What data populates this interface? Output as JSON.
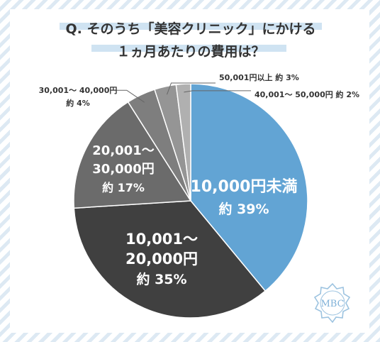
{
  "title_line1": "Q. そのうち「美容クリニック」にかける",
  "title_line2": "１ヵ月あたりの費用は？",
  "colors": {
    "highlight": "#cfe3f2",
    "slices": [
      "#62a4d4",
      "#404040",
      "#6b6b6b",
      "#7e7e7e",
      "#959595",
      "#b0b0b0"
    ],
    "outline": "#ffffff",
    "leader": "#666666",
    "dark_text": "#333333"
  },
  "logo": "MBC",
  "chart_data": {
    "type": "pie",
    "start": "12 o'clock",
    "direction": "clockwise",
    "slices": [
      {
        "name": "10,000円未満",
        "value": 39,
        "label_line1": "10,000円未満",
        "label_line2": "約 39%"
      },
      {
        "name": "10,001～20,000円",
        "value": 35,
        "label_line1": "10,001～",
        "label_line2": "20,000円",
        "label_line3": "約 35%"
      },
      {
        "name": "20,001～30,000円",
        "value": 17,
        "label_line1": "20,001～",
        "label_line2": "30,000円",
        "label_line3": "約 17%"
      },
      {
        "name": "30,001～40,000円",
        "value": 4,
        "label_line1": "30,001～ 40,000円",
        "label_line2": "約 4%"
      },
      {
        "name": "50,001円以上",
        "value": 3,
        "label_line1": "50,001円以上 約 3%"
      },
      {
        "name": "40,001～50,000円",
        "value": 2,
        "label_line1": "40,001～ 50,000円 約 2%"
      }
    ]
  }
}
